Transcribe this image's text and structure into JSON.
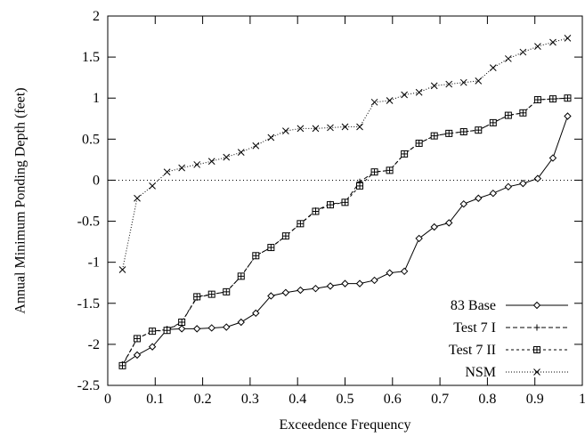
{
  "chart_data": {
    "type": "line",
    "title": "",
    "xlabel": "Exceedence Frequency",
    "ylabel": "Annual Minimum Ponding Depth (feet)",
    "xlim": [
      0,
      1
    ],
    "ylim": [
      -2.5,
      2
    ],
    "xticks": [
      0,
      0.1,
      0.2,
      0.3,
      0.4,
      0.5,
      0.6,
      0.7,
      0.8,
      0.9,
      1
    ],
    "xtick_labels": [
      "0",
      "0.1",
      "0.2",
      "0.3",
      "0.4",
      "0.5",
      "0.6",
      "0.7",
      "0.8",
      "0.9",
      "1"
    ],
    "yticks": [
      -2.5,
      -2,
      -1.5,
      -1,
      -0.5,
      0,
      0.5,
      1,
      1.5,
      2
    ],
    "ytick_labels": [
      "-2.5",
      "-2",
      "-1.5",
      "-1",
      "-0.5",
      "0",
      "0.5",
      "1",
      "1.5",
      "2"
    ],
    "grid": false,
    "zero_line": true,
    "legend_position": "bottom-right",
    "x": [
      0.031,
      0.062,
      0.094,
      0.125,
      0.156,
      0.188,
      0.219,
      0.25,
      0.281,
      0.312,
      0.344,
      0.375,
      0.406,
      0.438,
      0.469,
      0.5,
      0.531,
      0.562,
      0.594,
      0.625,
      0.656,
      0.688,
      0.719,
      0.75,
      0.781,
      0.812,
      0.844,
      0.875,
      0.906,
      0.938,
      0.969
    ],
    "series": [
      {
        "name": "83 Base",
        "marker": "diamond",
        "dash": "solid",
        "values": [
          -2.25,
          -2.13,
          -2.03,
          -1.82,
          -1.81,
          -1.81,
          -1.8,
          -1.79,
          -1.73,
          -1.62,
          -1.41,
          -1.37,
          -1.34,
          -1.32,
          -1.29,
          -1.26,
          -1.26,
          -1.22,
          -1.13,
          -1.11,
          -0.71,
          -0.57,
          -0.52,
          -0.29,
          -0.22,
          -0.16,
          -0.08,
          -0.04,
          0.02,
          0.27,
          0.78
        ]
      },
      {
        "name": "Test 7 I",
        "marker": "plus",
        "dash": "dashed",
        "values": [
          -2.25,
          -1.93,
          -1.84,
          -1.82,
          -1.73,
          -1.43,
          -1.39,
          -1.36,
          -1.17,
          -0.92,
          -0.82,
          -0.68,
          -0.53,
          -0.37,
          -0.29,
          -0.27,
          -0.02,
          0.1,
          0.12,
          0.32,
          0.45,
          0.54,
          0.57,
          0.59,
          0.61,
          0.7,
          0.79,
          0.82,
          0.98,
          0.99,
          1.0
        ]
      },
      {
        "name": "Test 7 II",
        "marker": "square",
        "dash": "short-dashed",
        "values": [
          -2.26,
          -1.93,
          -1.84,
          -1.83,
          -1.73,
          -1.42,
          -1.39,
          -1.36,
          -1.17,
          -0.92,
          -0.82,
          -0.68,
          -0.53,
          -0.38,
          -0.3,
          -0.27,
          -0.07,
          0.1,
          0.12,
          0.32,
          0.45,
          0.54,
          0.57,
          0.59,
          0.61,
          0.7,
          0.79,
          0.82,
          0.98,
          0.99,
          1.0
        ]
      },
      {
        "name": "NSM",
        "marker": "x",
        "dash": "dotted",
        "values": [
          -1.09,
          -0.22,
          -0.07,
          0.1,
          0.15,
          0.19,
          0.23,
          0.28,
          0.34,
          0.42,
          0.52,
          0.6,
          0.63,
          0.63,
          0.64,
          0.65,
          0.65,
          0.95,
          0.97,
          1.04,
          1.07,
          1.15,
          1.17,
          1.19,
          1.21,
          1.37,
          1.48,
          1.56,
          1.63,
          1.68,
          1.73
        ]
      }
    ]
  }
}
